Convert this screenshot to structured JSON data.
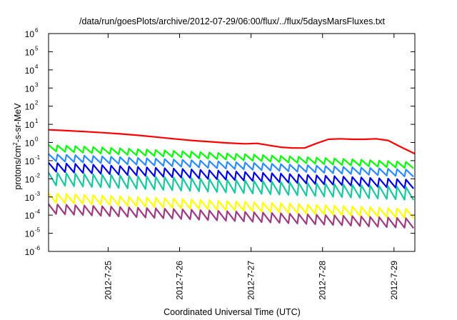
{
  "chart_data": {
    "type": "line",
    "title": "/data/run/goesPlots/archive/2012-07-29/06:00/flux/../flux/5daysMarsFluxes.txt",
    "xlabel": "Coordinated Universal Time (UTC)",
    "ylabel": "protons/cm²-s-sr-MeV",
    "ylabel_base": "protons/cm",
    "ylabel_sup": "2",
    "ylabel_rest": "-s-sr-MeV",
    "yscale": "log",
    "ylim": [
      1e-06,
      1000000
    ],
    "xlim": [
      "2012-07-24 04:00",
      "2012-07-29 07:00"
    ],
    "grid": false,
    "legend": "none",
    "x_ticks": [
      "2012-7-25",
      "2012-7-26",
      "2012-7-27",
      "2012-7-28",
      "2012-7-29"
    ],
    "y_ticks": [
      {
        "base": "10",
        "exp": "-6"
      },
      {
        "base": "10",
        "exp": "-5"
      },
      {
        "base": "10",
        "exp": "-4"
      },
      {
        "base": "10",
        "exp": "-3"
      },
      {
        "base": "10",
        "exp": "-2"
      },
      {
        "base": "10",
        "exp": "-1"
      },
      {
        "base": "10",
        "exp": "0"
      },
      {
        "base": "10",
        "exp": "1"
      },
      {
        "base": "10",
        "exp": "2"
      },
      {
        "base": "10",
        "exp": "3"
      },
      {
        "base": "10",
        "exp": "4"
      },
      {
        "base": "10",
        "exp": "5"
      },
      {
        "base": "10",
        "exp": "6"
      }
    ],
    "series": [
      {
        "color": "#ff0000",
        "kind": "smooth",
        "points": [
          [
            "2012-07-24 04:00",
            5.0
          ],
          [
            "2012-07-24 10:00",
            4.5
          ],
          [
            "2012-07-24 16:00",
            4.0
          ],
          [
            "2012-07-24 22:00",
            3.5
          ],
          [
            "2012-07-25 04:00",
            3.0
          ],
          [
            "2012-07-25 10:00",
            2.5
          ],
          [
            "2012-07-25 16:00",
            2.0
          ],
          [
            "2012-07-25 22:00",
            1.6
          ],
          [
            "2012-07-26 04:00",
            1.3
          ],
          [
            "2012-07-26 10:00",
            1.1
          ],
          [
            "2012-07-26 16:00",
            0.95
          ],
          [
            "2012-07-26 22:00",
            0.85
          ],
          [
            "2012-07-27 02:00",
            0.9
          ],
          [
            "2012-07-27 06:00",
            0.7
          ],
          [
            "2012-07-27 10:00",
            0.55
          ],
          [
            "2012-07-27 14:00",
            0.5
          ],
          [
            "2012-07-27 18:00",
            0.5
          ],
          [
            "2012-07-27 22:00",
            0.9
          ],
          [
            "2012-07-28 02:00",
            1.5
          ],
          [
            "2012-07-28 06:00",
            1.6
          ],
          [
            "2012-07-28 10:00",
            1.5
          ],
          [
            "2012-07-28 14:00",
            1.5
          ],
          [
            "2012-07-28 18:00",
            1.6
          ],
          [
            "2012-07-28 22:00",
            1.3
          ],
          [
            "2012-07-29 02:00",
            0.6
          ],
          [
            "2012-07-29 07:00",
            0.24
          ]
        ]
      },
      {
        "color": "#00ff00",
        "kind": "sawtooth",
        "start": 0.5,
        "end": 0.055,
        "amp": 2.2
      },
      {
        "color": "#2a8cff",
        "kind": "sawtooth",
        "start": 0.15,
        "end": 0.02,
        "amp": 2.4
      },
      {
        "color": "#0000e6",
        "kind": "sawtooth",
        "start": 0.045,
        "end": 0.005,
        "amp": 3.0
      },
      {
        "color": "#19c8a0",
        "kind": "sawtooth",
        "start": 0.01,
        "end": 0.0015,
        "amp": 5.0
      },
      {
        "color": "#ffff00",
        "kind": "sawtooth",
        "start": 0.0009,
        "end": 0.00012,
        "amp": 3.2
      },
      {
        "color": "#9e3a80",
        "kind": "sawtooth",
        "start": 0.00022,
        "end": 3.5e-05,
        "amp": 3.4
      }
    ]
  }
}
